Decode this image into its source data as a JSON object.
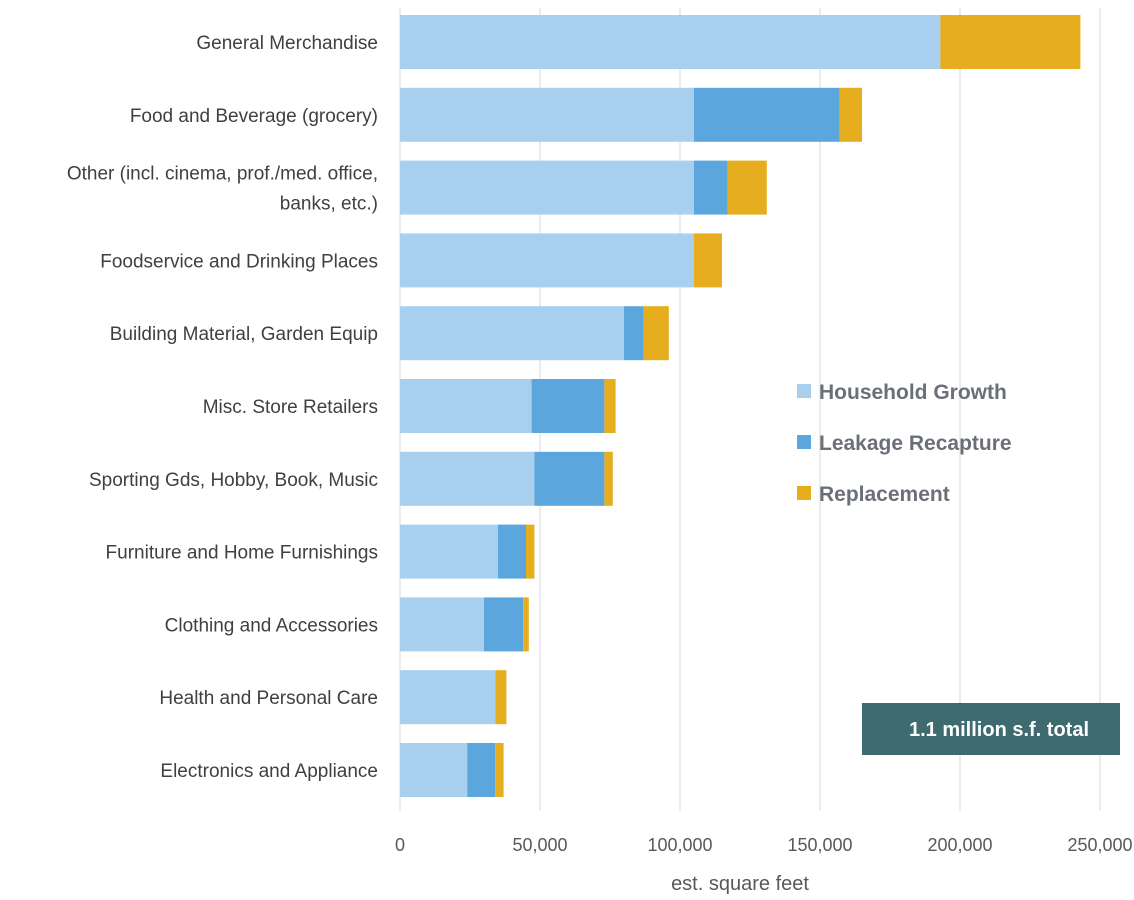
{
  "chart_data": {
    "type": "bar",
    "orientation": "horizontal",
    "stacked": true,
    "categories": [
      "General Merchandise",
      "Food and Beverage (grocery)",
      "Other (incl. cinema, prof./med. office, banks, etc.)",
      "Foodservice and Drinking Places",
      "Building Material, Garden Equip",
      "Misc. Store Retailers",
      "Sporting Gds, Hobby, Book, Music",
      "Furniture and Home Furnishings",
      "Clothing and Accessories",
      "Health and Personal Care",
      "Electronics and Appliance"
    ],
    "category_lines": [
      [
        "General Merchandise"
      ],
      [
        "Food and Beverage (grocery)"
      ],
      [
        "Other (incl. cinema, prof./med. office,",
        "banks, etc.)"
      ],
      [
        "Foodservice and Drinking Places"
      ],
      [
        "Building Material, Garden Equip"
      ],
      [
        "Misc. Store Retailers"
      ],
      [
        "Sporting Gds, Hobby, Book, Music"
      ],
      [
        "Furniture and Home Furnishings"
      ],
      [
        "Clothing and Accessories"
      ],
      [
        "Health and Personal Care"
      ],
      [
        "Electronics and Appliance"
      ]
    ],
    "series": [
      {
        "name": "Household Growth",
        "color": "#a9cfee",
        "values": [
          193000,
          105000,
          105000,
          105000,
          80000,
          47000,
          48000,
          35000,
          30000,
          34000,
          24000
        ]
      },
      {
        "name": "Leakage Recapture",
        "color": "#5ba7dd",
        "values": [
          0,
          52000,
          12000,
          0,
          7000,
          26000,
          25000,
          10000,
          14000,
          0,
          10000
        ]
      },
      {
        "name": "Replacement",
        "color": "#e6ad1f",
        "values": [
          50000,
          8000,
          14000,
          10000,
          9000,
          4000,
          3000,
          3000,
          2000,
          4000,
          3000
        ]
      }
    ],
    "xlabel": "est. square feet",
    "xlim": [
      0,
      250000
    ],
    "xticks": [
      0,
      50000,
      100000,
      150000,
      200000,
      250000
    ],
    "xtick_labels": [
      "0",
      "50,000",
      "100,000",
      "150,000",
      "200,000",
      "250,000"
    ],
    "grid": "vertical",
    "legend_position": "right",
    "annotation": "1.1 million s.f. total",
    "annotation_color": "#3e6b70"
  }
}
